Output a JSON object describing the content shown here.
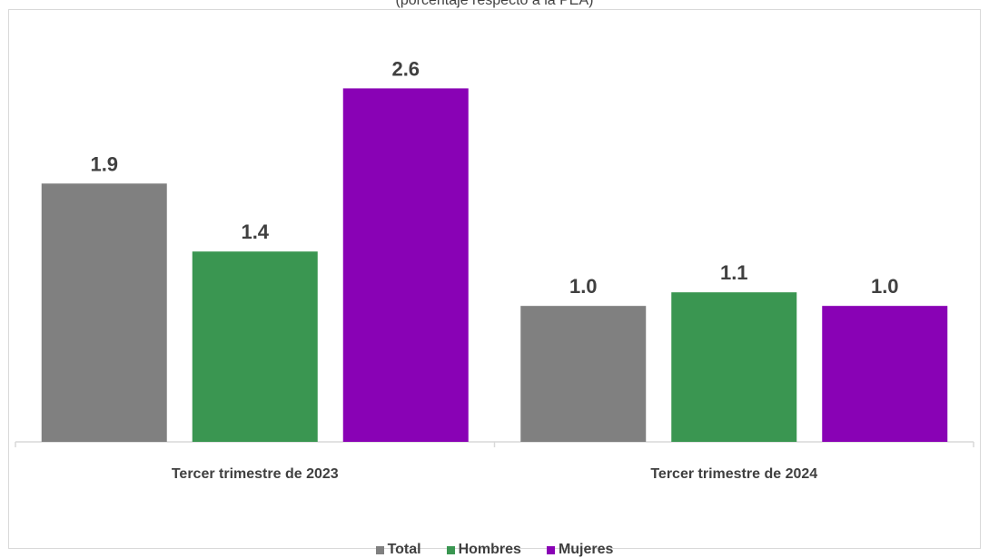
{
  "subtitle": "(porcentaje respecto a la PEA)",
  "chart_data": {
    "type": "bar",
    "title": "",
    "subtitle": "(porcentaje respecto a la PEA)",
    "categories": [
      "Tercer trimestre de 2023",
      "Tercer trimestre de 2024"
    ],
    "series": [
      {
        "name": "Total",
        "values": [
          1.9,
          1.0
        ],
        "color": "#808080"
      },
      {
        "name": "Hombres",
        "values": [
          1.4,
          1.1
        ],
        "color": "#3a9651"
      },
      {
        "name": "Mujeres",
        "values": [
          2.6,
          1.0
        ],
        "color": "#8902b5"
      }
    ],
    "value_labels": [
      [
        "1.9",
        "1.0"
      ],
      [
        "1.4",
        "1.1"
      ],
      [
        "2.6",
        "1.0"
      ]
    ],
    "ylim": [
      0,
      3.25
    ],
    "grid": false,
    "legend": "bottom"
  }
}
